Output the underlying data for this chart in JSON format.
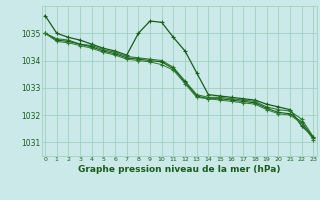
{
  "title": "Graphe pression niveau de la mer (hPa)",
  "bg_color": "#cbe9e9",
  "grid_color": "#99ccbb",
  "line_color": "#1a5c1a",
  "line_color2": "#2d7a2d",
  "xlabel_color": "#1a5c1a",
  "x_ticks": [
    0,
    1,
    2,
    3,
    4,
    5,
    6,
    7,
    8,
    9,
    10,
    11,
    12,
    13,
    14,
    15,
    16,
    17,
    18,
    19,
    20,
    21,
    22,
    23
  ],
  "ylim": [
    1030.5,
    1036.0
  ],
  "yticks": [
    1031,
    1032,
    1033,
    1034,
    1035
  ],
  "line1": [
    1035.65,
    1035.0,
    1034.85,
    1034.75,
    1034.6,
    1034.45,
    1034.35,
    1034.2,
    1035.0,
    1035.45,
    1035.4,
    1034.85,
    1034.35,
    1033.55,
    1032.75,
    1032.7,
    1032.65,
    1032.6,
    1032.55,
    1032.4,
    1032.3,
    1032.2,
    1031.6,
    1031.2
  ],
  "line2": [
    1035.0,
    1034.8,
    1034.75,
    1034.6,
    1034.55,
    1034.4,
    1034.3,
    1034.15,
    1034.1,
    1034.05,
    1034.0,
    1033.75,
    1033.25,
    1032.75,
    1032.65,
    1032.65,
    1032.6,
    1032.55,
    1032.5,
    1032.3,
    1032.2,
    1032.15,
    1031.85,
    1031.2
  ],
  "line3": [
    1035.0,
    1034.75,
    1034.7,
    1034.6,
    1034.5,
    1034.35,
    1034.25,
    1034.1,
    1034.05,
    1034.0,
    1033.95,
    1033.7,
    1033.2,
    1032.7,
    1032.6,
    1032.6,
    1032.55,
    1032.5,
    1032.45,
    1032.25,
    1032.1,
    1032.05,
    1031.75,
    1031.15
  ],
  "line4": [
    1035.0,
    1034.7,
    1034.65,
    1034.55,
    1034.45,
    1034.3,
    1034.2,
    1034.05,
    1034.0,
    1033.95,
    1033.85,
    1033.65,
    1033.15,
    1032.65,
    1032.6,
    1032.55,
    1032.5,
    1032.45,
    1032.4,
    1032.2,
    1032.05,
    1032.0,
    1031.7,
    1031.1
  ]
}
